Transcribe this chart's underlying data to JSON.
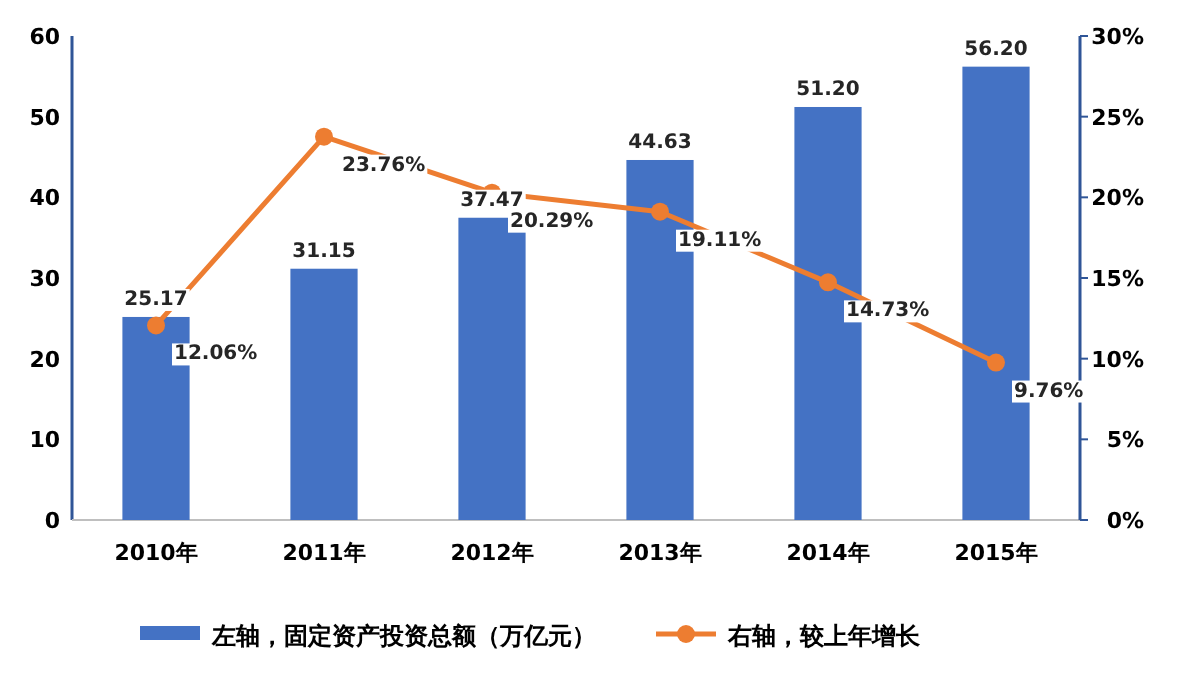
{
  "chart_data": {
    "type": "bar",
    "categories": [
      "2010年",
      "2011年",
      "2012年",
      "2013年",
      "2014年",
      "2015年"
    ],
    "series": [
      {
        "name": "左轴，固定资产投资总额（万亿元）",
        "color": "#4472c4",
        "values": [
          25.17,
          31.15,
          37.47,
          44.63,
          51.2,
          56.2
        ],
        "value_labels": [
          "25.17",
          "31.15",
          "37.47",
          "44.63",
          "51.20",
          "56.20"
        ]
      },
      {
        "name": "右轴，较上年增长",
        "type": "line",
        "axis": "y2",
        "color": "#ed7d31",
        "values": [
          12.06,
          23.76,
          20.29,
          19.11,
          14.73,
          9.76
        ],
        "value_labels": [
          "12.06%",
          "23.76%",
          "20.29%",
          "19.11%",
          "14.73%",
          "9.76%"
        ]
      }
    ],
    "ylim": [
      0,
      60
    ],
    "yticks": [
      0,
      10,
      20,
      30,
      40,
      50,
      60
    ],
    "y2lim": [
      0,
      30
    ],
    "y2ticks": [
      {
        "value": 0,
        "label": "0%"
      },
      {
        "value": 5,
        "label": "5%"
      },
      {
        "value": 10,
        "label": "10%"
      },
      {
        "value": 15,
        "label": "15%"
      },
      {
        "value": 20,
        "label": "20%"
      },
      {
        "value": 25,
        "label": "25%"
      },
      {
        "value": 30,
        "label": "30%"
      }
    ],
    "legend": "bottom",
    "marker": "circle"
  }
}
